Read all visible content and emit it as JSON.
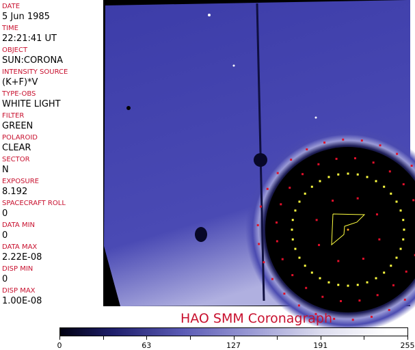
{
  "header_fields": [
    {
      "label": "DATE",
      "value": "5 Jun 1985"
    },
    {
      "label": "TIME",
      "value": "22:21:41 UT"
    },
    {
      "label": "OBJECT",
      "value": "SUN:CORONA"
    },
    {
      "label": "INTENSITY SOURCE",
      "value": "(K+F)*V"
    },
    {
      "label": "TYPE-OBS",
      "value": "WHITE LIGHT"
    },
    {
      "label": "FILTER",
      "value": "GREEN"
    },
    {
      "label": "POLAROID",
      "value": "CLEAR"
    },
    {
      "label": "SECTOR",
      "value": "N"
    },
    {
      "label": "EXPOSURE",
      "value": "8.192"
    },
    {
      "label": "SPACECRAFT ROLL",
      "value": "0"
    },
    {
      "label": "DATA MIN",
      "value": "0"
    },
    {
      "label": "DATA MAX",
      "value": "2.22E-08"
    },
    {
      "label": "DISP MIN",
      "value": "0"
    },
    {
      "label": "DISP MAX",
      "value": "1.00E-08"
    }
  ],
  "title": "HAO   SMM Coronagraph",
  "colorbar": {
    "ticks": [
      "0",
      "63",
      "127",
      "191",
      "255"
    ],
    "colors": {
      "low": "#000010",
      "mid": "#5a5ab4",
      "high": "#ffffff"
    }
  },
  "colors": {
    "label": "#c8102e",
    "marker_red": "#e0102a",
    "marker_yellow": "#ffff40"
  }
}
